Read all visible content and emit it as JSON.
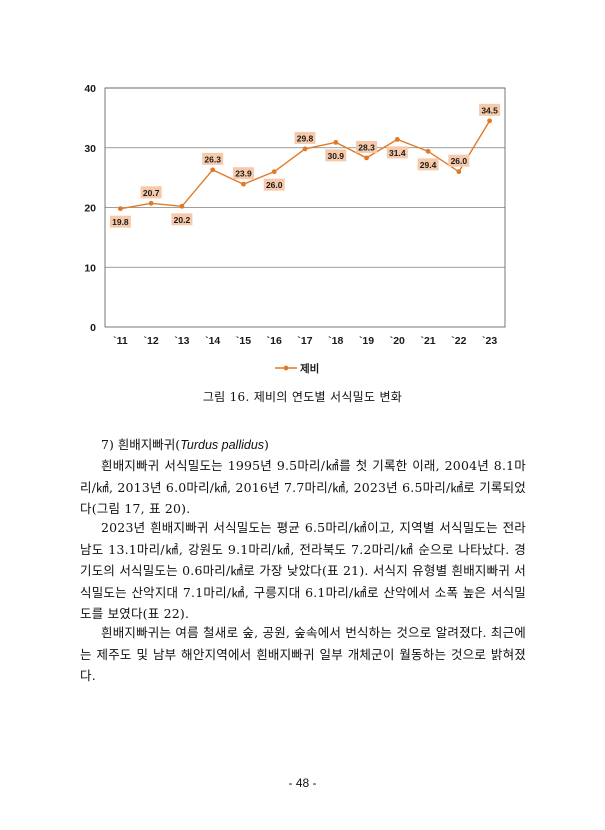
{
  "chart_data": {
    "type": "line",
    "categories": [
      "`11",
      "`12",
      "`13",
      "`14",
      "`15",
      "`16",
      "`17",
      "`18",
      "`19",
      "`20",
      "`21",
      "`22",
      "`23"
    ],
    "series": [
      {
        "name": "제비",
        "values": [
          19.8,
          20.7,
          20.2,
          26.3,
          23.9,
          26.0,
          29.8,
          30.9,
          28.3,
          31.4,
          29.4,
          26.0,
          34.5
        ]
      }
    ],
    "data_labels": [
      "19.8",
      "20.7",
      "20.2",
      "26.3",
      "23.9",
      "26.0",
      "29.8",
      "30.9",
      "28.3",
      "31.4",
      "29.4",
      "26.0",
      "34.5"
    ],
    "y_ticks": [
      "0",
      "10",
      "20",
      "30",
      "40"
    ],
    "ylim": [
      0,
      40
    ],
    "grid": true,
    "legend_position": "bottom",
    "colors": {
      "series": "#E07A26",
      "label_bg": "#F6C9AA",
      "grid": "#7f7f7f",
      "axis": "#595959"
    }
  },
  "figure_caption": "그림 16. 제비의 연도별 서식밀도 변화",
  "section": {
    "heading_prefix": "7) 흰배지빠귀(",
    "heading_scientific": "Turdus pallidus",
    "heading_suffix": ")"
  },
  "paragraphs": [
    "흰배지빠귀 서식밀도는 1995년 9.5마리/㎢를 첫 기록한 이래, 2004년 8.1마리/㎢, 2013년 6.0마리/㎢, 2016년 7.7마리/㎢, 2023년 6.5마리/㎢로 기록되었다(그림 17, 표 20).",
    "2023년 흰배지빠귀 서식밀도는 평균 6.5마리/㎢이고, 지역별 서식밀도는 전라남도 13.1마리/㎢, 강원도 9.1마리/㎢, 전라북도 7.2마리/㎢ 순으로 나타났다. 경기도의 서식밀도는 0.6마리/㎢로 가장 낮았다(표 21). 서식지 유형별 흰배지빠귀 서식밀도는 산악지대 7.1마리/㎢, 구릉지대 6.1마리/㎢로 산악에서 소폭 높은 서식밀도를 보였다(표 22).",
    "흰배지빠귀는 여름 철새로 숲, 공원, 숲속에서 번식하는 것으로 알려졌다. 최근에는 제주도 및 남부 해안지역에서 흰배지빠귀 일부 개체군이 월동하는 것으로 밝혀졌다."
  ],
  "page_number": "- 48 -"
}
